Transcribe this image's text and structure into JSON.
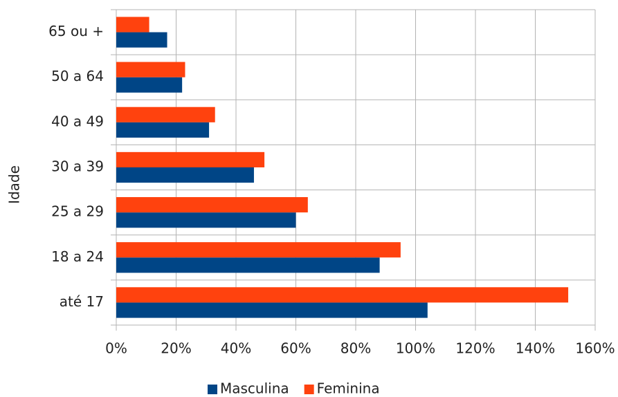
{
  "chart_data": {
    "type": "hbar",
    "y_label": "Idade",
    "categories": [
      "até 17",
      "18 a 24",
      "25 a 29",
      "30 a 39",
      "40 a 49",
      "50 a 64",
      "65 ou +"
    ],
    "series": [
      {
        "name": "Masculina",
        "color": "#004586",
        "values": [
          104,
          88,
          60,
          46,
          31,
          22,
          17
        ]
      },
      {
        "name": "Feminina",
        "color": "#ff420e",
        "values": [
          151,
          95,
          64,
          49.5,
          33,
          23,
          11
        ]
      }
    ],
    "xlim": [
      0,
      160
    ],
    "xticks": [
      {
        "value": 0,
        "label": "0%"
      },
      {
        "value": 20,
        "label": "20%"
      },
      {
        "value": 40,
        "label": "40%"
      },
      {
        "value": 60,
        "label": "60%"
      },
      {
        "value": 80,
        "label": "80%"
      },
      {
        "value": 100,
        "label": "100%"
      },
      {
        "value": 120,
        "label": "120%"
      },
      {
        "value": 140,
        "label": "140%"
      },
      {
        "value": 160,
        "label": "160%"
      }
    ],
    "grid": true,
    "legend": "bottom"
  }
}
